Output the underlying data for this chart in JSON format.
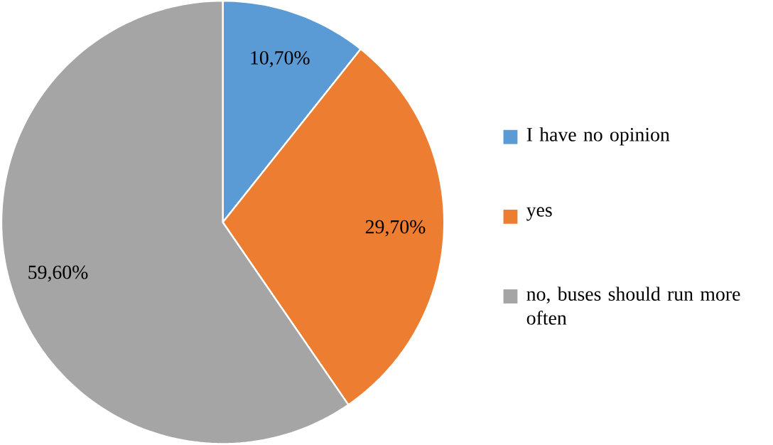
{
  "chart_data": {
    "type": "pie",
    "categories": [
      "I have no opinion",
      "yes",
      "no, buses should run more often"
    ],
    "values": [
      10.7,
      29.7,
      59.6
    ],
    "colors": [
      "#5b9bd5",
      "#ed7d31",
      "#a5a5a5"
    ],
    "value_labels": [
      "10,70%",
      "29,70%",
      "59,60%"
    ],
    "legend": "right"
  }
}
